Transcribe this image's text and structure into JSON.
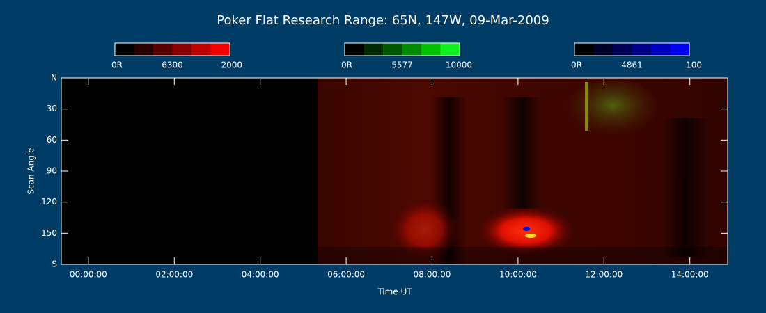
{
  "chart_data": {
    "type": "heatmap",
    "title": "Poker Flat Research Range: 65N, 147W, 09-Mar-2009",
    "xlabel": "Time UT",
    "ylabel": "Scan Angle",
    "xlim": [
      -0.63,
      14.88
    ],
    "xticks": [
      {
        "value": 0,
        "label": "00:00:00"
      },
      {
        "value": 2,
        "label": "02:00:00"
      },
      {
        "value": 4,
        "label": "04:00:00"
      },
      {
        "value": 6,
        "label": "06:00:00"
      },
      {
        "value": 8,
        "label": "08:00:00"
      },
      {
        "value": 10,
        "label": "10:00:00"
      },
      {
        "value": 12,
        "label": "12:00:00"
      },
      {
        "value": 14,
        "label": "14:00:00"
      }
    ],
    "ylim": [
      0,
      180
    ],
    "yticks": [
      {
        "value": 0,
        "label": "N"
      },
      30,
      60,
      90,
      120,
      150,
      {
        "value": 180,
        "label": "S"
      }
    ],
    "colorbars": [
      {
        "name": "6300",
        "min_label": "0R",
        "max": 2000,
        "colors": [
          "#000000",
          "#2a0000",
          "#580000",
          "#8a0000",
          "#c00000",
          "#f00000"
        ]
      },
      {
        "name": "5577",
        "min_label": "0R",
        "max": 10000,
        "colors": [
          "#000000",
          "#002a00",
          "#005800",
          "#008a00",
          "#00c000",
          "#10f020"
        ]
      },
      {
        "name": "4861",
        "min_label": "0R",
        "max": 100,
        "colors": [
          "#000000",
          "#00002a",
          "#000058",
          "#00008a",
          "#0000c0",
          "#0000f0"
        ]
      }
    ]
  }
}
